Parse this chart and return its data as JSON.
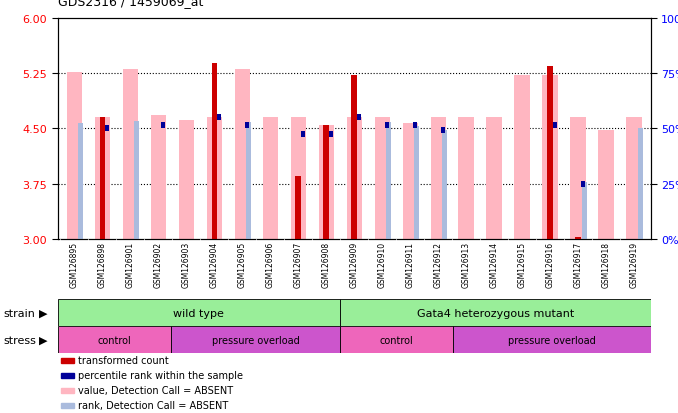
{
  "title": "GDS2316 / 1459069_at",
  "samples": [
    "GSM126895",
    "GSM126898",
    "GSM126901",
    "GSM126902",
    "GSM126903",
    "GSM126904",
    "GSM126905",
    "GSM126906",
    "GSM126907",
    "GSM126908",
    "GSM126909",
    "GSM126910",
    "GSM126911",
    "GSM126912",
    "GSM126913",
    "GSM126914",
    "GSM126915",
    "GSM126916",
    "GSM126917",
    "GSM126918",
    "GSM126919"
  ],
  "red_bars": [
    3.0,
    4.65,
    3.0,
    3.0,
    3.0,
    5.38,
    3.0,
    3.0,
    3.85,
    4.55,
    5.22,
    3.0,
    3.0,
    3.0,
    3.0,
    3.0,
    3.0,
    5.35,
    3.03,
    3.0,
    3.0
  ],
  "pink_bars": [
    5.27,
    4.65,
    5.3,
    4.68,
    4.62,
    4.65,
    5.3,
    4.65,
    4.65,
    4.55,
    4.65,
    4.65,
    4.57,
    4.65,
    4.65,
    4.65,
    5.22,
    5.22,
    4.65,
    4.48,
    4.65
  ],
  "blue_sq_y": [
    null,
    4.5,
    null,
    4.55,
    null,
    4.65,
    4.55,
    null,
    4.42,
    4.42,
    4.65,
    4.55,
    4.55,
    4.48,
    null,
    null,
    null,
    4.55,
    3.75,
    null,
    null
  ],
  "light_blue_bars": [
    4.57,
    null,
    4.6,
    null,
    null,
    null,
    4.58,
    null,
    null,
    null,
    null,
    4.58,
    4.53,
    4.48,
    null,
    null,
    null,
    null,
    3.77,
    null,
    4.5
  ],
  "ylim": [
    3.0,
    6.0
  ],
  "yticks_left": [
    3.0,
    3.75,
    4.5,
    5.25,
    6.0
  ],
  "yticks_right_pct": [
    0,
    25,
    50,
    75,
    100
  ],
  "red_color": "#CC0000",
  "pink_color": "#FFB6C1",
  "blue_color": "#000099",
  "light_blue_color": "#AABBDD",
  "green_color": "#99EE99",
  "pink_stress": "#EE66BB",
  "purple_stress": "#CC55CC",
  "gray_bg": "#CCCCCC",
  "wild_type_count": 10,
  "control1_count": 4,
  "pressure1_count": 6,
  "control2_count": 4,
  "pressure2_count": 7
}
